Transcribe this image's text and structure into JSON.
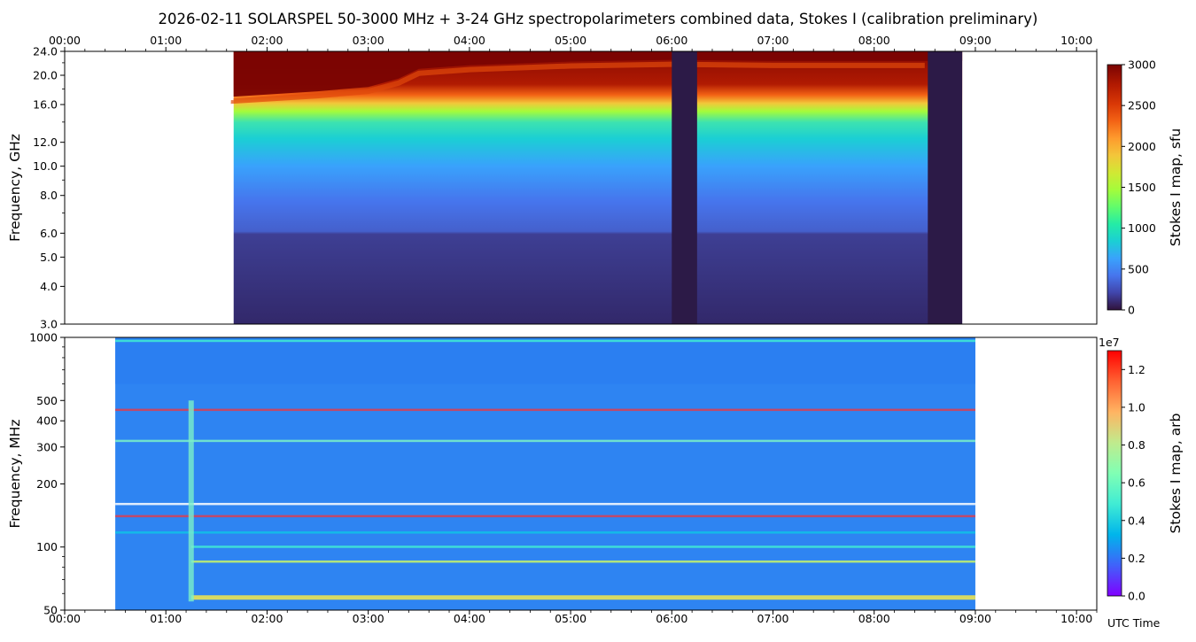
{
  "chart_data": [
    {
      "type": "heatmap",
      "title": "2026-02-11  SOLARSPEL  50-3000 MHz  +  3-24 GHz  spectropolarimeters combined data,  Stokes I  (calibration preliminary)",
      "xlabel": "",
      "ylabel": "Frequency, GHz",
      "x_unit": "UTC hours",
      "xlim": [
        0,
        10.2
      ],
      "ylim": [
        3.0,
        24.0
      ],
      "yscale": "log",
      "x_ticks": [
        0,
        1,
        2,
        3,
        4,
        5,
        6,
        7,
        8,
        9,
        10
      ],
      "x_tick_labels": [
        "00:00",
        "01:00",
        "02:00",
        "03:00",
        "04:00",
        "05:00",
        "06:00",
        "07:00",
        "08:00",
        "09:00",
        "10:00"
      ],
      "x_tick_labels_position": "top",
      "y_ticks": [
        3.0,
        4.0,
        5.0,
        6.0,
        8.0,
        10.0,
        12.0,
        16.0,
        20.0,
        24.0
      ],
      "y_tick_labels": [
        "3.0",
        "4.0",
        "5.0",
        "6.0",
        "8.0",
        "10.0",
        "12.0",
        "16.0",
        "20.0",
        "24.0"
      ],
      "data_coverage_hours": [
        1.67,
        8.87
      ],
      "data_gaps_hours": [
        [
          6.0,
          6.25
        ],
        [
          8.53,
          8.87
        ]
      ],
      "saturation_edge_ghz": [
        [
          1.67,
          17.0
        ],
        [
          2.5,
          17.7
        ],
        [
          3.0,
          18.3
        ],
        [
          3.3,
          19.5
        ],
        [
          3.5,
          21.0
        ],
        [
          4.0,
          21.6
        ],
        [
          5.0,
          22.2
        ],
        [
          6.0,
          22.5
        ],
        [
          7.0,
          22.3
        ],
        [
          8.5,
          22.3
        ]
      ],
      "colorbar": {
        "label": "Stokes I map, sfu",
        "range": [
          0,
          3000
        ],
        "ticks": [
          0,
          500,
          1000,
          1500,
          2000,
          2500,
          3000
        ],
        "tick_labels": [
          "0",
          "500",
          "1000",
          "1500",
          "2000",
          "2500",
          "3000"
        ],
        "colormap": "turbo"
      }
    },
    {
      "type": "heatmap",
      "title": "",
      "xlabel": "UTC Time",
      "ylabel": "Frequency, MHz",
      "x_unit": "UTC hours",
      "xlim": [
        0,
        10.2
      ],
      "ylim": [
        50,
        1000
      ],
      "yscale": "log",
      "x_ticks": [
        0,
        1,
        2,
        3,
        4,
        5,
        6,
        7,
        8,
        9,
        10
      ],
      "x_tick_labels": [
        "00:00",
        "01:00",
        "02:00",
        "03:00",
        "04:00",
        "05:00",
        "06:00",
        "07:00",
        "08:00",
        "09:00",
        "10:00"
      ],
      "y_ticks": [
        50,
        100,
        200,
        300,
        400,
        500,
        1000
      ],
      "y_tick_labels": [
        "50",
        "100",
        "200",
        "300",
        "400",
        "500",
        "1000"
      ],
      "data_coverage_hours": [
        0.5,
        9.0
      ],
      "burst_time_hours": 1.25,
      "persistent_lines_mhz": [
        58,
        85,
        100,
        117,
        140,
        160,
        320,
        450,
        960
      ],
      "colorbar": {
        "label": "Stokes I map, arb",
        "range": [
          0,
          1.3
        ],
        "ticks": [
          0,
          0.2,
          0.4,
          0.6,
          0.8,
          1.0,
          1.2
        ],
        "tick_labels": [
          "0.0",
          "0.2",
          "0.4",
          "0.6",
          "0.8",
          "1.0",
          "1.2"
        ],
        "offset_label": "1e7",
        "colormap": "rainbow"
      }
    }
  ]
}
